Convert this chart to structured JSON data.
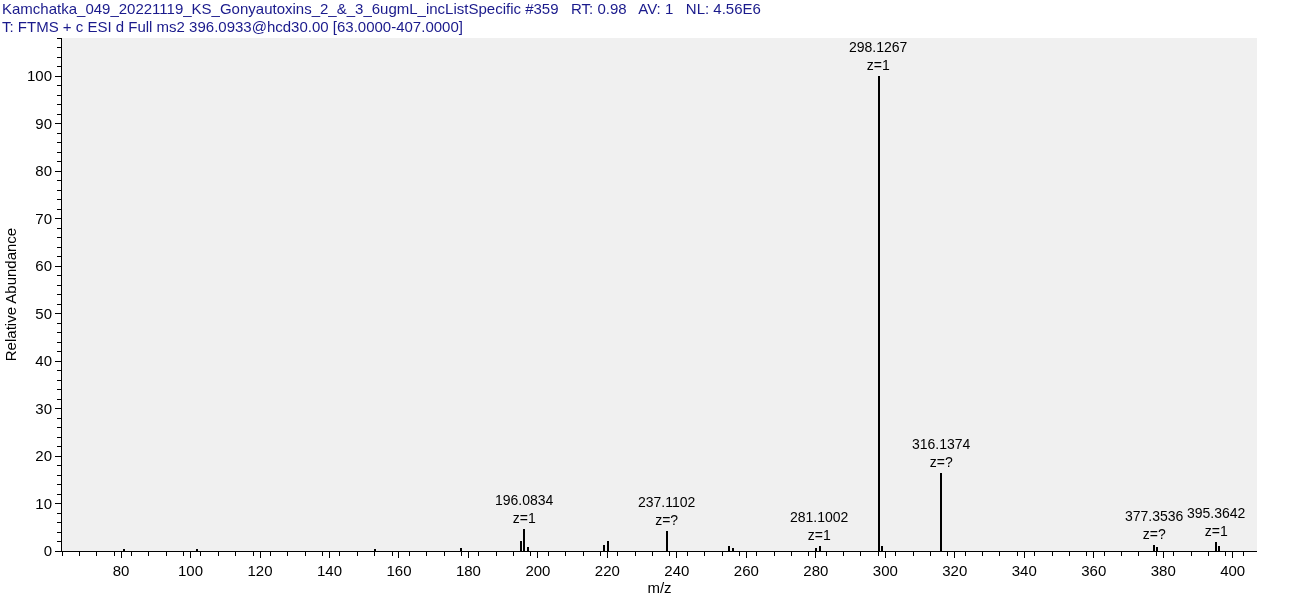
{
  "chart_data": {
    "type": "bar",
    "title": "Kamchatka_049_20221119_KS_Gonyautoxins_2_&_3_6ugmL_incListSpecific #359   RT: 0.98   AV: 1   NL: 4.56E6",
    "subtitle": "T: FTMS + c ESI d Full ms2 396.0933@hcd30.00 [63.0000-407.0000]",
    "xlabel": "m/z",
    "ylabel": "Relative Abundance",
    "x": [
      81,
      102,
      153,
      178,
      195.1,
      196.0834,
      197.1,
      219.1,
      220.1,
      237.1102,
      255.1,
      256.1,
      280.1,
      281.1002,
      298.1267,
      299.1,
      316.1374,
      377.3536,
      378.1,
      395.3642,
      396.1
    ],
    "values": [
      0.5,
      0.5,
      0.5,
      0.6,
      2.1,
      4.7,
      0.8,
      1.2,
      2.1,
      4.2,
      1.0,
      0.6,
      0.7,
      1.1,
      100,
      1.1,
      16.5,
      1.3,
      0.9,
      1.9,
      1.0
    ],
    "color": "#000000",
    "annotations": [
      {
        "text": "196.0834\nz=1",
        "x": 196.0834,
        "y": 4.7
      },
      {
        "text": "237.1102\nz=?",
        "x": 237.1102,
        "y": 4.2
      },
      {
        "text": "281.1002\nz=1",
        "x": 281.1002,
        "y": 1.1
      },
      {
        "text": "298.1267\nz=1",
        "x": 298.1267,
        "y": 100
      },
      {
        "text": "316.1374\nz=?",
        "x": 316.1374,
        "y": 16.5
      },
      {
        "text": "377.3536\nz=?",
        "x": 377.3536,
        "y": 1.3
      },
      {
        "text": "395.3642\nz=1",
        "x": 395.3642,
        "y": 1.9
      }
    ],
    "xlim": [
      63,
      407
    ],
    "xticks": [
      80,
      100,
      120,
      140,
      160,
      180,
      200,
      220,
      240,
      260,
      280,
      300,
      320,
      340,
      360,
      380,
      400
    ],
    "ylim": [
      0,
      108
    ],
    "yticks": [
      0,
      10,
      20,
      30,
      40,
      50,
      60,
      70,
      80,
      90,
      100
    ],
    "grid": false
  }
}
